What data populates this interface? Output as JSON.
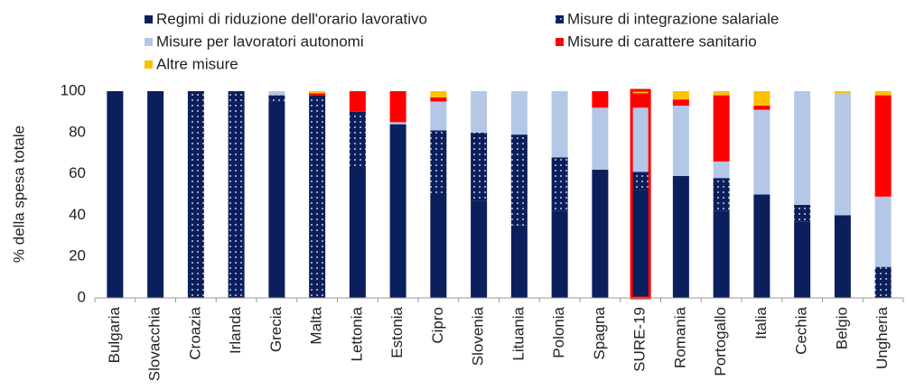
{
  "chart_data": {
    "type": "stacked_bar",
    "y_label": "% della spesa totale",
    "categories": [
      "Bulgaria",
      "Slovacchia",
      "Croazia",
      "Irlanda",
      "Grecia",
      "Malta",
      "Lettonia",
      "Estonia",
      "Cipro",
      "Slovenia",
      "Lituania",
      "Polonia",
      "Spagna",
      "SURE-19",
      "Romania",
      "Portogallo",
      "Italia",
      "Cechia",
      "Belgio",
      "Ungheria"
    ],
    "series": [
      {
        "name": "Regimi di riduzione dell'orario lavorativo",
        "color": "#0b1f5c",
        "values": [
          100,
          100,
          0,
          0,
          95,
          0,
          62,
          84,
          50,
          47,
          35,
          42,
          62,
          52,
          59,
          42,
          50,
          37,
          40,
          0
        ]
      },
      {
        "name": "Misure di integrazione salariale",
        "color": "#0b1f5c",
        "pattern": "dots",
        "values": [
          0,
          0,
          100,
          100,
          3,
          98,
          28,
          0,
          31,
          33,
          44,
          26,
          0,
          9,
          0,
          16,
          0,
          8,
          0,
          15
        ]
      },
      {
        "name": "Misure per lavoratori autonomi",
        "color": "#b4c7e7",
        "values": [
          0,
          0,
          0,
          0,
          2,
          0,
          0,
          1,
          14,
          20,
          21,
          32,
          30,
          31,
          34,
          8,
          41,
          55,
          59,
          34
        ]
      },
      {
        "name": "Misure di carattere sanitario",
        "color": "#ff0000",
        "values": [
          0,
          0,
          0,
          0,
          0,
          1,
          10,
          15,
          2,
          0,
          0,
          0,
          8,
          7,
          3,
          32,
          2,
          0,
          0,
          49
        ]
      },
      {
        "name": "Altre misure",
        "color": "#ffc000",
        "values": [
          0,
          0,
          0,
          0,
          0,
          1,
          0,
          0,
          3,
          0,
          0,
          0,
          0,
          1,
          4,
          2,
          7,
          0,
          1,
          2
        ]
      }
    ],
    "ylim": [
      0,
      100
    ],
    "yticks": [
      0,
      20,
      40,
      60,
      80,
      100
    ],
    "highlight": {
      "index": 13,
      "color": "#ff0000"
    }
  }
}
